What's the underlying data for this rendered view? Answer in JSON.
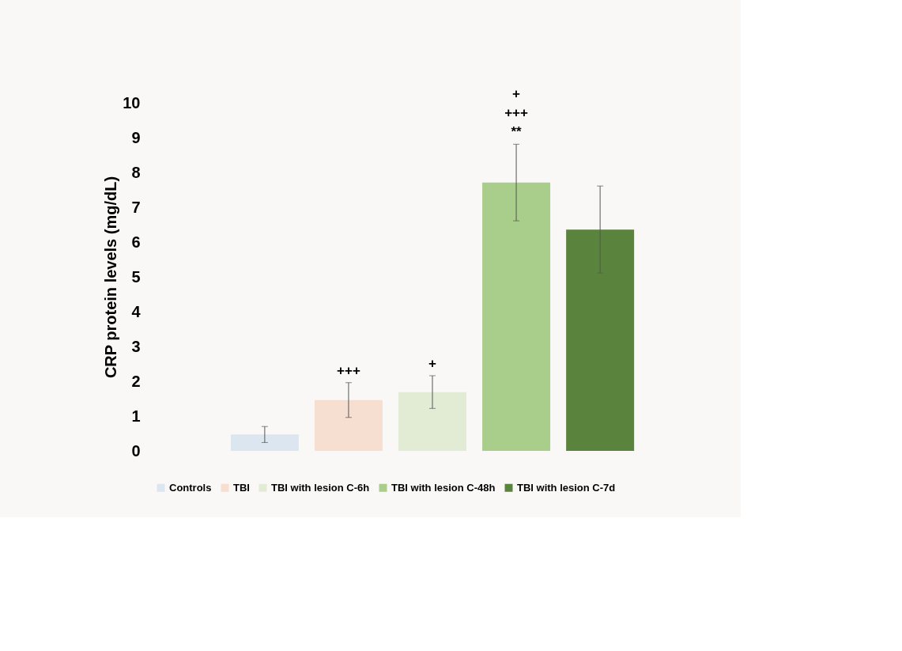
{
  "chart_data": {
    "type": "bar",
    "ylabel": "CRP protein levels  (mg/dL)",
    "categories": [
      null
    ],
    "series": [
      {
        "name": "Controls",
        "color": "#dce6f0",
        "values": [
          0.47
        ],
        "errors": [
          0.23
        ]
      },
      {
        "name": "TBI",
        "color": "#f6dfd0",
        "values": [
          1.46
        ],
        "errors": [
          0.5
        ],
        "value_labels": [
          "+++"
        ]
      },
      {
        "name": "TBI with lesion C-6h",
        "color": "#e2ecd5",
        "values": [
          1.69
        ],
        "errors": [
          0.47
        ],
        "value_labels": [
          "+"
        ]
      },
      {
        "name": "TBI with lesion C-48h",
        "color": "#a9cd8a",
        "values": [
          7.71
        ],
        "errors": [
          1.1
        ],
        "value_labels": [
          "+\n+++\n**"
        ]
      },
      {
        "name": "TBI with lesion C-7d",
        "color": "#5a843e",
        "values": [
          6.36
        ],
        "errors": [
          1.25
        ]
      }
    ],
    "ylim": [
      0,
      10
    ],
    "yticks": [
      0,
      1,
      2,
      3,
      4,
      5,
      6,
      7,
      8,
      9,
      10
    ],
    "tick_labels": "y",
    "legend": "bottom",
    "grid": false
  }
}
